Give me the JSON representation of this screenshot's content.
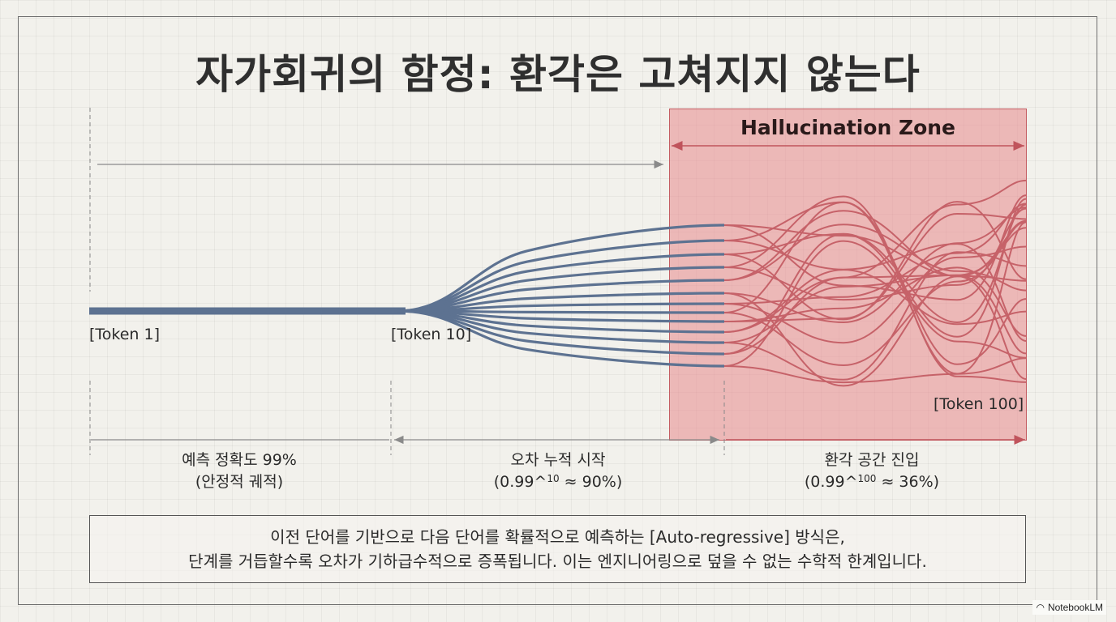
{
  "title": "자가회귀의 함정: 환각은 고쳐지지 않는다",
  "zone": {
    "title": "Hallucination Zone"
  },
  "tokens": {
    "t1": "[Token 1]",
    "t10": "[Token 10]",
    "t100": "[Token 100]"
  },
  "phases": [
    {
      "line1": "예측 정확도 99%",
      "line2": "(안정적 궤적)"
    },
    {
      "line1": "오차 누적 시작",
      "line2_pre": "(0.99^",
      "line2_sup": "10",
      "line2_post": " ≈ 90%)"
    },
    {
      "line1": "환각 공간 진입",
      "line2_pre": "(0.99^",
      "line2_sup": "100",
      "line2_post": " ≈ 36%)"
    }
  ],
  "note": {
    "line1": "이전 단어를 기반으로 다음 단어를 확률적으로 예측하는 [Auto-regressive] 방식은,",
    "line2": "단계를 거듭할수록 오차가 기하급수적으로 증폭됩니다. 이는 엔지니어링으로 덮을 수 없는 수학적 한계입니다."
  },
  "brand": {
    "label": "NotebookLM",
    "icon": "notebooklm-logo-icon"
  },
  "colors": {
    "stable": "#5d7291",
    "hallucination": "#c0545c",
    "zone_fill": "#ec9a9c",
    "zone_border": "#c45c62"
  }
}
